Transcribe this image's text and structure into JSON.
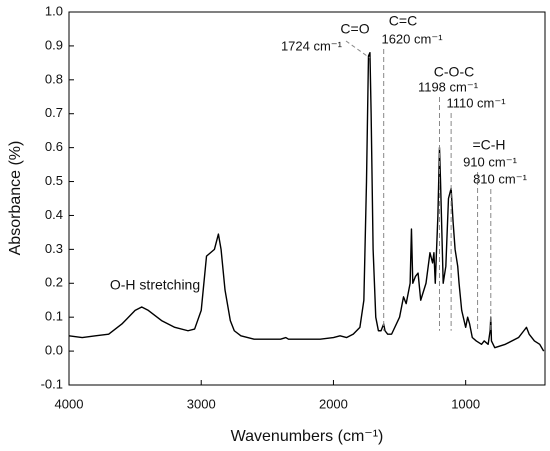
{
  "chart_data": {
    "type": "line",
    "x_label": "Wavenumbers (cm⁻¹)",
    "y_label": "Absorbance (%)",
    "xlim": [
      4000,
      400
    ],
    "xticks": [
      4000,
      3000,
      2000,
      1000
    ],
    "ylim": [
      -0.1,
      1.0
    ],
    "yticks": [
      -0.1,
      {
        "value": 0,
        "label": "0.0"
      },
      0.1,
      0.2,
      0.3,
      0.4,
      0.5,
      0.6,
      0.7,
      0.8,
      0.9,
      {
        "value": 1,
        "label": "1.0"
      }
    ],
    "grid": false,
    "series": [
      {
        "color": "#000000",
        "x": [
          4000,
          3900,
          3800,
          3700,
          3600,
          3500,
          3450,
          3400,
          3300,
          3200,
          3100,
          3050,
          3000,
          2960,
          2930,
          2900,
          2870,
          2850,
          2820,
          2780,
          2750,
          2700,
          2600,
          2500,
          2400,
          2360,
          2340,
          2200,
          2100,
          2000,
          1950,
          1900,
          1850,
          1800,
          1770,
          1750,
          1735,
          1724,
          1715,
          1700,
          1680,
          1660,
          1640,
          1620,
          1610,
          1590,
          1560,
          1500,
          1470,
          1450,
          1420,
          1410,
          1400,
          1380,
          1360,
          1340,
          1300,
          1270,
          1250,
          1240,
          1230,
          1210,
          1198,
          1190,
          1170,
          1150,
          1130,
          1110,
          1095,
          1080,
          1060,
          1050,
          1030,
          1000,
          985,
          970,
          950,
          920,
          880,
          860,
          830,
          815,
          810,
          805,
          780,
          700,
          600,
          560,
          540,
          520,
          480,
          440,
          410
        ],
        "values": [
          0.045,
          0.04,
          0.045,
          0.05,
          0.08,
          0.12,
          0.13,
          0.12,
          0.09,
          0.07,
          0.06,
          0.065,
          0.12,
          0.28,
          0.29,
          0.3,
          0.345,
          0.3,
          0.18,
          0.09,
          0.06,
          0.045,
          0.035,
          0.035,
          0.035,
          0.04,
          0.035,
          0.035,
          0.035,
          0.04,
          0.045,
          0.04,
          0.05,
          0.07,
          0.15,
          0.5,
          0.87,
          0.88,
          0.7,
          0.3,
          0.1,
          0.06,
          0.06,
          0.08,
          0.06,
          0.05,
          0.05,
          0.1,
          0.16,
          0.14,
          0.2,
          0.36,
          0.2,
          0.22,
          0.23,
          0.15,
          0.2,
          0.29,
          0.26,
          0.29,
          0.2,
          0.4,
          0.6,
          0.5,
          0.2,
          0.25,
          0.45,
          0.48,
          0.38,
          0.3,
          0.25,
          0.2,
          0.12,
          0.07,
          0.1,
          0.08,
          0.04,
          0.03,
          0.02,
          0.03,
          0.02,
          0.06,
          0.1,
          0.03,
          0.01,
          0.02,
          0.04,
          0.06,
          0.07,
          0.05,
          0.03,
          0.02,
          0.0
        ]
      }
    ],
    "annotations": [
      {
        "title": "C=O",
        "peaks": [
          {
            "x": 1724,
            "label": "1724 cm⁻¹"
          }
        ]
      },
      {
        "title": "C=C",
        "peaks": [
          {
            "x": 1620,
            "label": "1620 cm⁻¹"
          }
        ]
      },
      {
        "title": "C-O-C",
        "peaks": [
          {
            "x": 1198,
            "label": "1198 cm⁻¹"
          },
          {
            "x": 1110,
            "label": "1110 cm⁻¹"
          }
        ]
      },
      {
        "title": "=C-H",
        "peaks": [
          {
            "x": 910,
            "label": "910 cm⁻¹"
          },
          {
            "x": 810,
            "label": "810 cm⁻¹"
          }
        ]
      },
      {
        "text": "O-H stretching"
      }
    ]
  }
}
